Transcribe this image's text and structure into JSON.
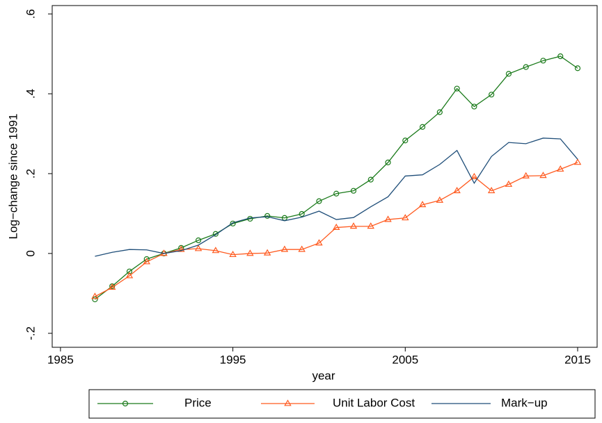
{
  "chart_data": {
    "type": "line",
    "x": [
      1987,
      1988,
      1989,
      1990,
      1991,
      1992,
      1993,
      1994,
      1995,
      1996,
      1997,
      1998,
      1999,
      2000,
      2001,
      2002,
      2003,
      2004,
      2005,
      2006,
      2007,
      2008,
      2009,
      2010,
      2011,
      2012,
      2013,
      2014,
      2015
    ],
    "series": [
      {
        "name": "Price",
        "color": "#1a7a1a",
        "marker": "circle",
        "values": [
          -0.115,
          -0.082,
          -0.045,
          -0.014,
          0,
          0.014,
          0.033,
          0.049,
          0.075,
          0.087,
          0.094,
          0.089,
          0.099,
          0.131,
          0.15,
          0.157,
          0.185,
          0.228,
          0.283,
          0.317,
          0.354,
          0.413,
          0.368,
          0.398,
          0.45,
          0.467,
          0.483,
          0.494,
          0.464
        ]
      },
      {
        "name": "Unit Labor Cost",
        "color": "#ff5a1f",
        "marker": "triangle",
        "values": [
          -0.108,
          -0.085,
          -0.056,
          -0.021,
          0,
          0.01,
          0.012,
          0.007,
          -0.003,
          0,
          0.001,
          0.01,
          0.01,
          0.026,
          0.065,
          0.068,
          0.068,
          0.085,
          0.089,
          0.122,
          0.133,
          0.157,
          0.192,
          0.157,
          0.173,
          0.194,
          0.195,
          0.211,
          0.228
        ]
      },
      {
        "name": "Mark−up",
        "color": "#1f4e79",
        "marker": "none",
        "values": [
          -0.007,
          0.003,
          0.01,
          0.009,
          0,
          0.007,
          0.021,
          0.047,
          0.077,
          0.089,
          0.092,
          0.082,
          0.091,
          0.106,
          0.085,
          0.09,
          0.117,
          0.142,
          0.194,
          0.197,
          0.223,
          0.258,
          0.176,
          0.243,
          0.278,
          0.275,
          0.289,
          0.287,
          0.236
        ]
      }
    ],
    "x_label": "year",
    "y_label": "Log−change since 1991",
    "xlim": [
      1984.52,
      2016.13
    ],
    "xticks": [
      1985,
      1995,
      2005,
      2015
    ],
    "ylim": [
      -0.235,
      0.621
    ],
    "yticks": [
      {
        "value": -0.2,
        "label": "-.2"
      },
      {
        "value": 0,
        "label": "0"
      },
      {
        "value": 0.2,
        "label": ".2"
      },
      {
        "value": 0.4,
        "label": ".4"
      },
      {
        "value": 0.6,
        "label": ".6"
      }
    ],
    "grid": false,
    "legend": "bottom"
  }
}
